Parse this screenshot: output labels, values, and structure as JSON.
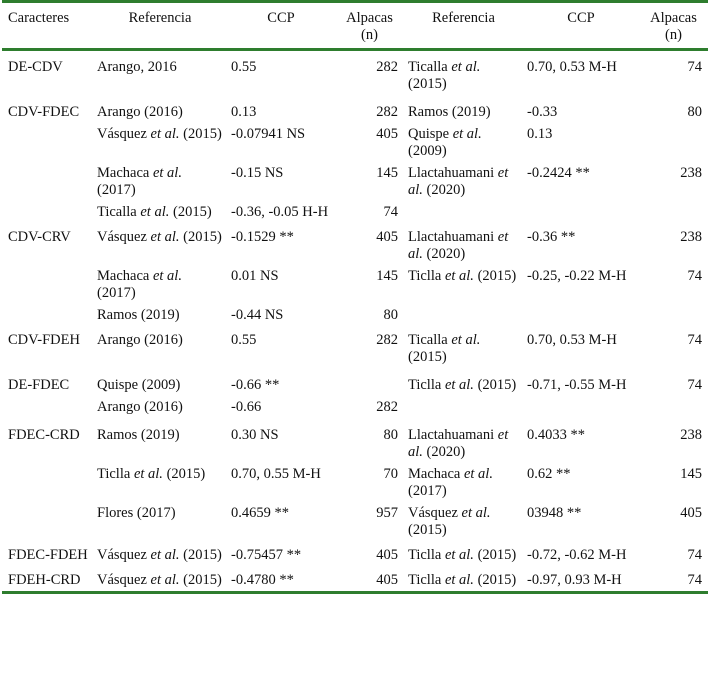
{
  "headers": [
    "Caracteres",
    "Referencia",
    "CCP",
    "Alpacas (n)",
    "Referencia",
    "CCP",
    "Alpacas (n)"
  ],
  "rows": [
    {
      "trait": "DE-CDV",
      "ref1": "Arango, 2016",
      "ref1_it": "",
      "ref1_tail": "",
      "ccp1": "0.55",
      "n1": "282",
      "ref2": "Ticalla ",
      "ref2_it": "et al.",
      "ref2_tail": " (2015)",
      "ccp2": "0.70, 0.53 M-H",
      "n2": "74",
      "cls": "grp"
    },
    {
      "trait": "CDV-FDEC",
      "ref1": "Arango (2016)",
      "ref1_it": "",
      "ref1_tail": "",
      "ccp1": "0.13",
      "n1": "282",
      "ref2": "Ramos (2019)",
      "ref2_it": "",
      "ref2_tail": "",
      "ccp2": "-0.33",
      "n2": "80",
      "cls": "tall"
    },
    {
      "trait": "",
      "ref1": "Vásquez ",
      "ref1_it": "et al.",
      "ref1_tail": " (2015)",
      "ccp1": "-0.07941 NS",
      "n1": "405",
      "ref2": "Quispe ",
      "ref2_it": "et al.",
      "ref2_tail": " (2009)",
      "ccp2": "0.13",
      "n2": "",
      "cls": "sub"
    },
    {
      "trait": "",
      "ref1": "Machaca ",
      "ref1_it": "et al.",
      "ref1_tail": " (2017)",
      "ccp1": "-0.15 NS",
      "n1": "145",
      "ref2": "Llactahuamani ",
      "ref2_it": "et al.",
      "ref2_tail": " (2020)",
      "ccp2": "-0.2424 **",
      "n2": "238",
      "cls": "sub"
    },
    {
      "trait": "",
      "ref1": "Ticalla ",
      "ref1_it": "et al.",
      "ref1_tail": " (2015)",
      "ccp1": "-0.36, -0.05 H-H",
      "n1": "74",
      "ref2": "",
      "ref2_it": "",
      "ref2_tail": "",
      "ccp2": "",
      "n2": "",
      "cls": "sub"
    },
    {
      "trait": "CDV-CRV",
      "ref1": "Vásquez ",
      "ref1_it": "et al.",
      "ref1_tail": " (2015)",
      "ccp1": "-0.1529 **",
      "n1": "405",
      "ref2": "Llactahuamani ",
      "ref2_it": "et al.",
      "ref2_tail": " (2020)",
      "ccp2": "-0.36 **",
      "n2": "238",
      "cls": "grp"
    },
    {
      "trait": "",
      "ref1": "Machaca ",
      "ref1_it": "et al.",
      "ref1_tail": " (2017)",
      "ccp1": "0.01 NS",
      "n1": "145",
      "ref2": "Ticlla ",
      "ref2_it": "et al.",
      "ref2_tail": " (2015)",
      "ccp2": "-0.25, -0.22 M-H",
      "n2": "74",
      "cls": "sub"
    },
    {
      "trait": "",
      "ref1": "Ramos (2019)",
      "ref1_it": "",
      "ref1_tail": "",
      "ccp1": "-0.44 NS",
      "n1": "80",
      "ref2": "",
      "ref2_it": "",
      "ref2_tail": "",
      "ccp2": "",
      "n2": "",
      "cls": "sub"
    },
    {
      "trait": "CDV-FDEH",
      "ref1": "Arango (2016)",
      "ref1_it": "",
      "ref1_tail": "",
      "ccp1": "0.55",
      "n1": "282",
      "ref2": "Ticalla ",
      "ref2_it": "et al.",
      "ref2_tail": " (2015)",
      "ccp2": "0.70, 0.53 M-H",
      "n2": "74",
      "cls": "grp"
    },
    {
      "trait": "DE-FDEC",
      "ref1": "Quispe (2009)",
      "ref1_it": "",
      "ref1_tail": "",
      "ccp1": "-0.66 **",
      "n1": "",
      "ref2": "Ticlla ",
      "ref2_it": "et al.",
      "ref2_tail": " (2015)",
      "ccp2": "-0.71, -0.55 M-H",
      "n2": "74",
      "cls": "tall"
    },
    {
      "trait": "",
      "ref1": "Arango (2016)",
      "ref1_it": "",
      "ref1_tail": "",
      "ccp1": "-0.66",
      "n1": "282",
      "ref2": "",
      "ref2_it": "",
      "ref2_tail": "",
      "ccp2": "",
      "n2": "",
      "cls": "sub"
    },
    {
      "trait": "FDEC-CRD",
      "ref1": "Ramos (2019)",
      "ref1_it": "",
      "ref1_tail": "",
      "ccp1": "0.30 NS",
      "n1": "80",
      "ref2": "Llactahuamani ",
      "ref2_it": "et al.",
      "ref2_tail": " (2020)",
      "ccp2": "0.4033 **",
      "n2": "238",
      "cls": "tall"
    },
    {
      "trait": "",
      "ref1": "Ticlla ",
      "ref1_it": "et al.",
      "ref1_tail": " (2015)",
      "ccp1": "0.70, 0.55 M-H",
      "n1": "70",
      "ref2": "Machaca ",
      "ref2_it": "et al.",
      "ref2_tail": " (2017)",
      "ccp2": "0.62 **",
      "n2": "145",
      "cls": "sub"
    },
    {
      "trait": "",
      "ref1": "Flores (2017)",
      "ref1_it": "",
      "ref1_tail": "",
      "ccp1": "0.4659 **",
      "n1": "957",
      "ref2": "Vásquez ",
      "ref2_it": "et al.",
      "ref2_tail": " (2015)",
      "ccp2": "03948 **",
      "n2": "405",
      "cls": "sub"
    },
    {
      "trait": "FDEC-FDEH",
      "ref1": "Vásquez ",
      "ref1_it": "et al.",
      "ref1_tail": " (2015)",
      "ccp1": "-0.75457 **",
      "n1": "405",
      "ref2": "Ticlla ",
      "ref2_it": "et al.",
      "ref2_tail": " (2015)",
      "ccp2": "-0.72, -0.62 M-H",
      "n2": "74",
      "cls": "grp"
    },
    {
      "trait": "FDEH-CRD",
      "ref1": "Vásquez ",
      "ref1_it": "et al.",
      "ref1_tail": " (2015)",
      "ccp1": "-0.4780 **",
      "n1": "405",
      "ref2": "Ticlla ",
      "ref2_it": "et al.",
      "ref2_tail": " (2015)",
      "ccp2": "-0.97, 0.93 M-H",
      "n2": "74",
      "cls": "grp"
    }
  ]
}
